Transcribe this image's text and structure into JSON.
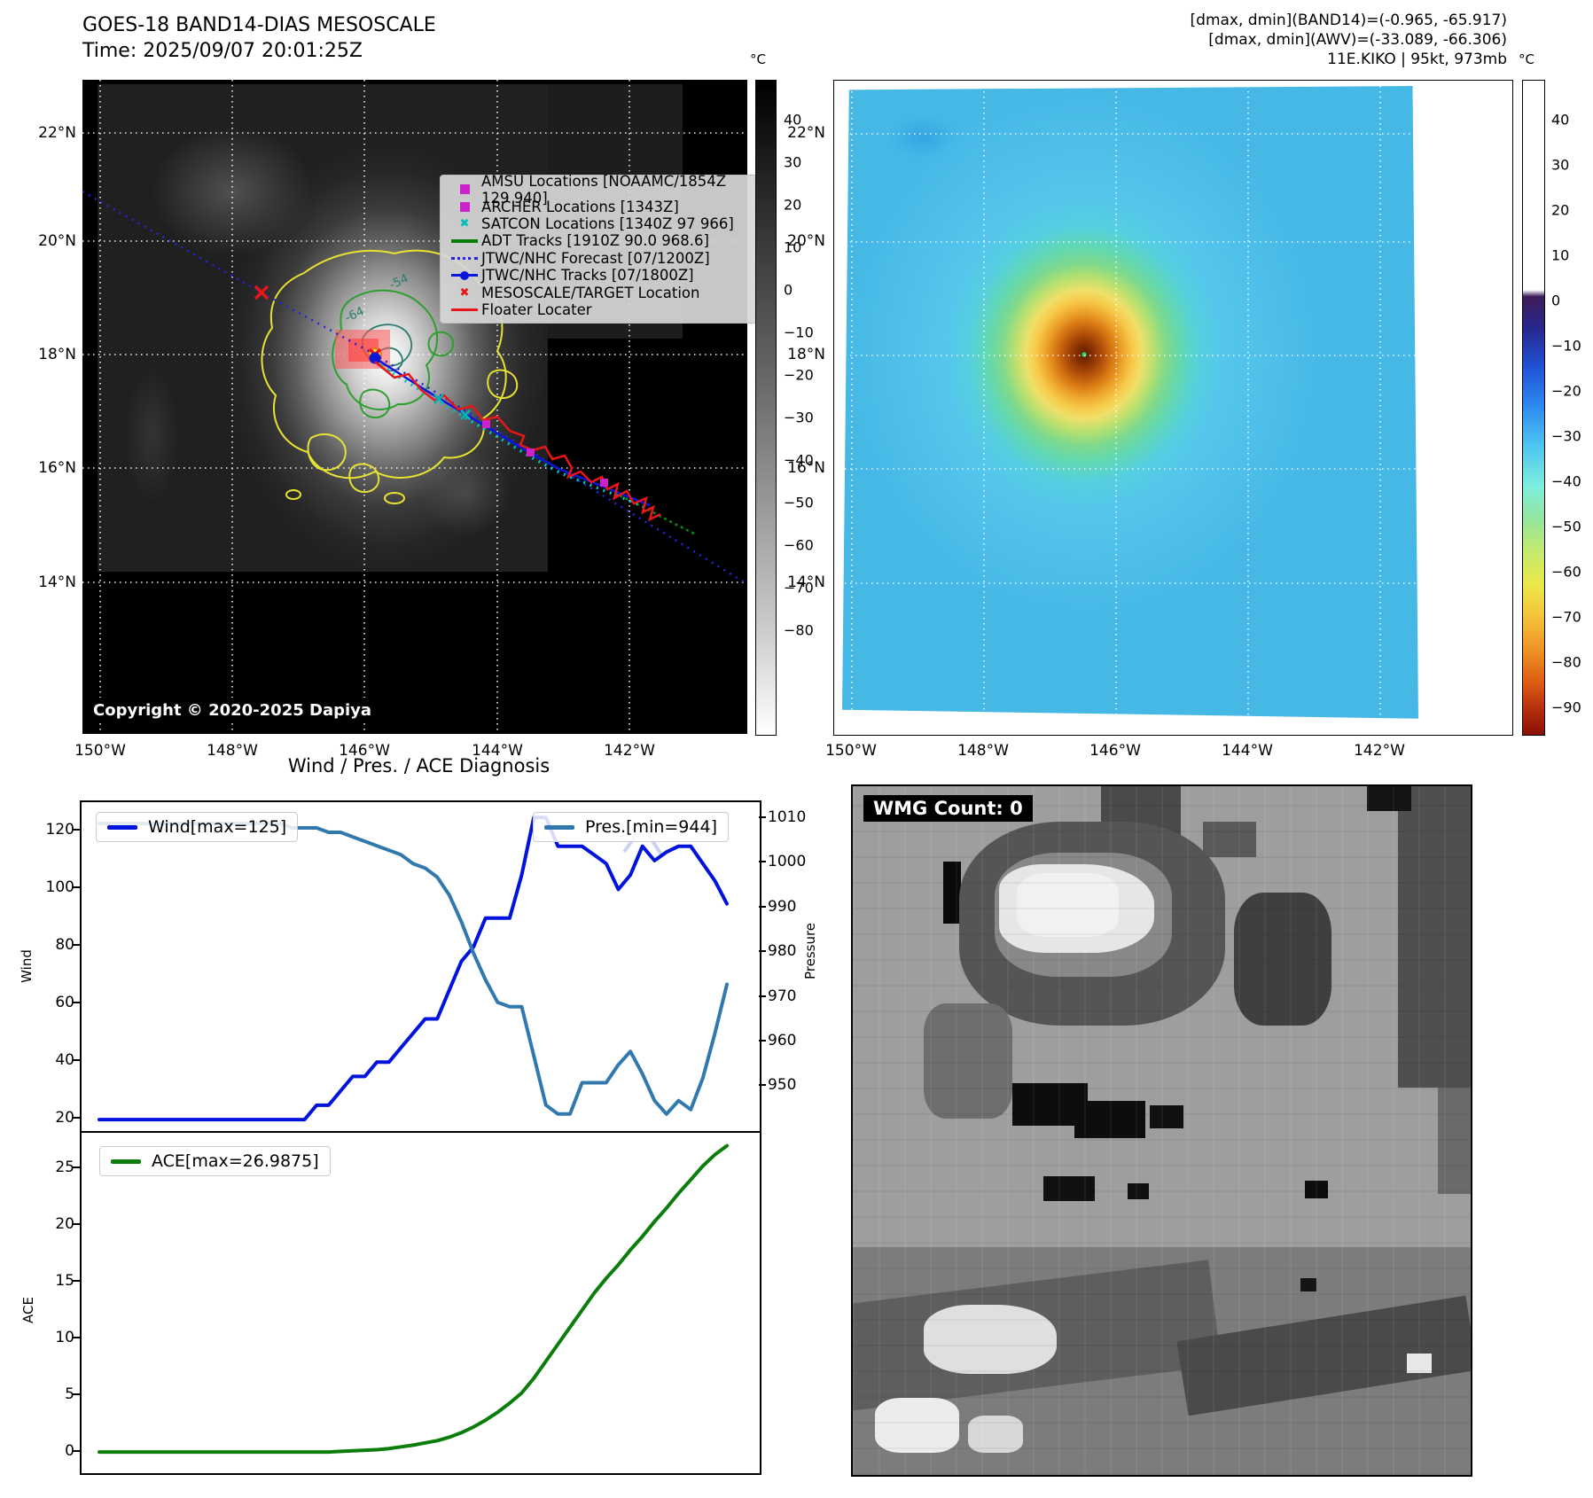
{
  "panel1": {
    "title": "GOES-18 BAND14-DIAS MESOSCALE",
    "subtitle": "Time: 2025/09/07 20:01:25Z",
    "copyright": "Copyright © 2020-2025 Dapiya",
    "legend": [
      {
        "label": "AMSU Locations [NOAAMC/1854Z 129 940]",
        "marker": "square",
        "color": "#cc22cc"
      },
      {
        "label": "ARCHER Locations [1343Z]",
        "marker": "square",
        "color": "#cc22cc"
      },
      {
        "label": "SATCON Locations [1340Z 97 966]",
        "marker": "x",
        "color": "#00bcbc"
      },
      {
        "label": "ADT Tracks [1910Z 90.0 968.6]",
        "marker": "line",
        "color": "#0c7d0c"
      },
      {
        "label": "JTWC/NHC Forecast [07/1200Z]",
        "marker": "dotted",
        "color": "#2424e0"
      },
      {
        "label": "JTWC/NHC Tracks [07/1800Z]",
        "marker": "line-dot",
        "color": "#0b16dd"
      },
      {
        "label": "MESOSCALE/TARGET Location",
        "marker": "x",
        "color": "#e81616"
      },
      {
        "label": "Floater Locater",
        "marker": "line",
        "color": "#e81616"
      }
    ],
    "contour_labels": [
      "-54",
      "-64"
    ],
    "lon_ticks": [
      "150°W",
      "148°W",
      "146°W",
      "144°W",
      "142°W"
    ],
    "lat_ticks": [
      "22°N",
      "20°N",
      "18°N",
      "16°N",
      "14°N"
    ],
    "colorbar": {
      "unit": "°C",
      "ticks": [
        "40",
        "30",
        "20",
        "10",
        "0",
        "−10",
        "−20",
        "−30",
        "−40",
        "−50",
        "−60",
        "−70",
        "−80"
      ]
    }
  },
  "panel2": {
    "header_lines": [
      "[dmax, dmin](BAND14)=(-0.965, -65.917)",
      "[dmax, dmin](AWV)=(-33.089, -66.306)",
      "11E.KIKO | 95kt, 973mb"
    ],
    "lon_ticks": [
      "150°W",
      "148°W",
      "146°W",
      "144°W",
      "142°W"
    ],
    "lat_ticks": [
      "22°N",
      "20°N",
      "18°N",
      "16°N",
      "14°N"
    ],
    "colorbar": {
      "unit": "°C",
      "ticks": [
        "40",
        "30",
        "20",
        "10",
        "0",
        "−10",
        "−20",
        "−30",
        "−40",
        "−50",
        "−60",
        "−70",
        "−80",
        "−90"
      ]
    }
  },
  "charts": {
    "title": "Wind / Pres. / ACE Diagnosis"
  },
  "chart_data": [
    {
      "id": "wind_pres",
      "type": "line",
      "title": "Wind / Pres. / ACE Diagnosis",
      "ylabel_left": "Wind",
      "ylabel_right": "Pressure",
      "yticks_left": [
        "120",
        "100",
        "80",
        "60",
        "40",
        "20"
      ],
      "yticks_right": [
        "1010",
        "1000",
        "990",
        "980",
        "970",
        "960",
        "950"
      ],
      "legend_position": [
        "upper left",
        "upper right"
      ],
      "grid": false,
      "series": [
        {
          "name": "Wind[max=125]",
          "axis": "left",
          "color": "#0013dc",
          "ylim": [
            14.8,
            130.3
          ],
          "values": [
            20,
            20,
            20,
            20,
            20,
            20,
            20,
            20,
            20,
            20,
            20,
            20,
            20,
            20,
            20,
            20,
            20,
            20,
            25,
            25,
            30,
            35,
            35,
            40,
            40,
            45,
            50,
            55,
            55,
            65,
            75,
            80,
            90,
            90,
            90,
            105,
            125,
            125,
            115,
            115,
            115,
            112,
            109,
            100,
            105,
            115,
            110,
            113,
            115,
            115,
            109,
            103,
            95
          ]
        },
        {
          "name": "Pres.[min=944]",
          "axis": "right",
          "color": "#3179ad",
          "ylim": [
            939.4,
            1013.75
          ],
          "values": [
            1009,
            1009,
            1009,
            1009,
            1009,
            1009,
            1009,
            1009,
            1009,
            1009,
            1009,
            1009,
            1009,
            1009,
            1009,
            1009,
            1008,
            1008,
            1008,
            1007,
            1007,
            1006,
            1005,
            1004,
            1003,
            1002,
            1000,
            999,
            997,
            993,
            987,
            980,
            974,
            969,
            968,
            968,
            957,
            946,
            944,
            944,
            951,
            951,
            951,
            955,
            958,
            953,
            947,
            944,
            947,
            945,
            952,
            962,
            973
          ]
        }
      ]
    },
    {
      "id": "ace",
      "type": "line",
      "ylabel": "ACE",
      "yticks": [
        "25",
        "20",
        "15",
        "10",
        "5",
        "0"
      ],
      "legend_position": [
        "upper left"
      ],
      "grid": false,
      "series": [
        {
          "name": "ACE[max=26.9875]",
          "axis": "left",
          "color": "#0b7d0b",
          "ylim": [
            -1.87,
            28.13
          ],
          "values": [
            0,
            0,
            0,
            0,
            0,
            0,
            0,
            0,
            0,
            0,
            0,
            0,
            0,
            0,
            0,
            0,
            0,
            0,
            0,
            0,
            0.05,
            0.1,
            0.15,
            0.2,
            0.3,
            0.45,
            0.6,
            0.8,
            1.0,
            1.3,
            1.7,
            2.2,
            2.8,
            3.5,
            4.3,
            5.2,
            6.5,
            8.0,
            9.5,
            11.0,
            12.5,
            14.0,
            15.3,
            16.5,
            17.8,
            19.0,
            20.3,
            21.5,
            22.8,
            24.0,
            25.2,
            26.2,
            26.9875
          ]
        }
      ]
    }
  ],
  "panel4": {
    "label": "WMG Count: 0"
  }
}
